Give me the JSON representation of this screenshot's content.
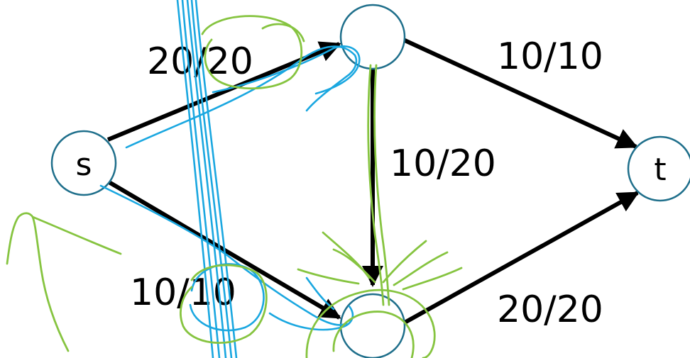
{
  "colors": {
    "node_stroke": "#1f6f8b",
    "edge": "#000000",
    "ink_blue": "#1aa7e0",
    "ink_green": "#86c440"
  },
  "nodes": {
    "s": "s",
    "t": "t",
    "top": "",
    "bottom": ""
  },
  "edges": {
    "s_top": "20/20",
    "s_bottom": "10/10",
    "top_t": "10/10",
    "top_bottom": "10/20",
    "bottom_t": "20/20"
  }
}
